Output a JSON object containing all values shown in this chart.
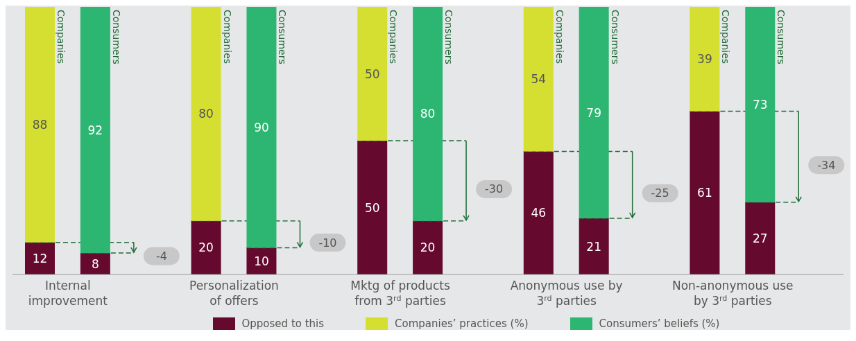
{
  "chart_data": {
    "type": "bar",
    "stacked": true,
    "data_labels": true,
    "legend": "bottom",
    "ylim": [
      0,
      100
    ],
    "categories": [
      "Companies",
      "Consumers",
      null,
      "Companies",
      "Consumers",
      null,
      "Companies",
      "Consumers",
      null,
      "Companies",
      "Consumers",
      null,
      "Companies",
      "Consumers",
      null
    ],
    "series": [
      {
        "name": "Opposed to this",
        "color": "#650a2e",
        "values": [
          12,
          8,
          null,
          20,
          10,
          null,
          50,
          20,
          null,
          46,
          21,
          null,
          61,
          27,
          null
        ]
      },
      {
        "name": "Companies’ practices (%)",
        "color": "#d5df32",
        "values": [
          88,
          null,
          null,
          80,
          null,
          null,
          50,
          null,
          null,
          54,
          null,
          null,
          39,
          null,
          null
        ]
      },
      {
        "name": "Consumers’ beliefs (%)",
        "color": "#2db672",
        "values": [
          null,
          92,
          null,
          null,
          90,
          null,
          null,
          80,
          null,
          null,
          79,
          null,
          null,
          73,
          null
        ]
      }
    ],
    "annotations": [
      "Internal improvement",
      "-4",
      "Personalization of offers",
      "-10",
      "Mktg of products from 3$^{rd}$ parties",
      "-30",
      "Anonymous use by 3$^{rd}$ parties",
      "-25",
      "Non-anonymous use by 3$^{rd}$ parties",
      "-34"
    ]
  }
}
